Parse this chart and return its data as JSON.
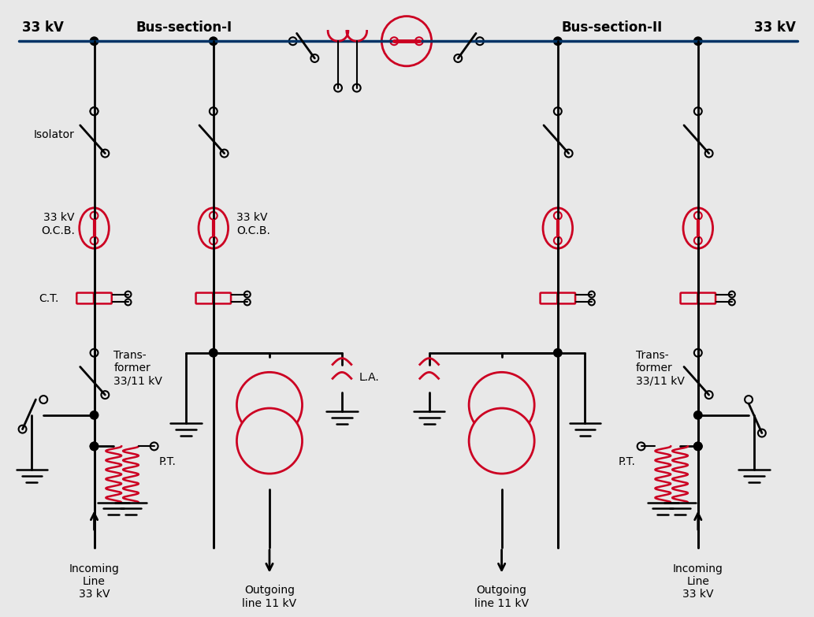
{
  "bg_color": "#e8e8e8",
  "line_color": "#000000",
  "bus_color": "#003366",
  "red_color": "#cc0022",
  "figsize": [
    10.33,
    7.83
  ],
  "dpi": 100,
  "labels": {
    "kv33_left": "33 kV",
    "kv33_right": "33 kV",
    "bus1": "Bus-section-I",
    "bus2": "Bus-section-II",
    "isolator": "Isolator",
    "ocb1": "33 kV\nO.C.B.",
    "ocb2": "33 kV\nO.C.B.",
    "ct": "C.T.",
    "transformer1": "Trans-\nformer\n33/11 kV",
    "transformer2": "Trans-\nformer\n33/11 kV",
    "la": "L.A.",
    "pt": "P.T.",
    "incoming1": "Incoming\nLine\n33 kV",
    "incoming2": "Incoming\nLine\n33 kV",
    "outgoing1": "Outgoing\nline 11 kV",
    "outgoing2": "Outgoing\nline 11 kV"
  }
}
